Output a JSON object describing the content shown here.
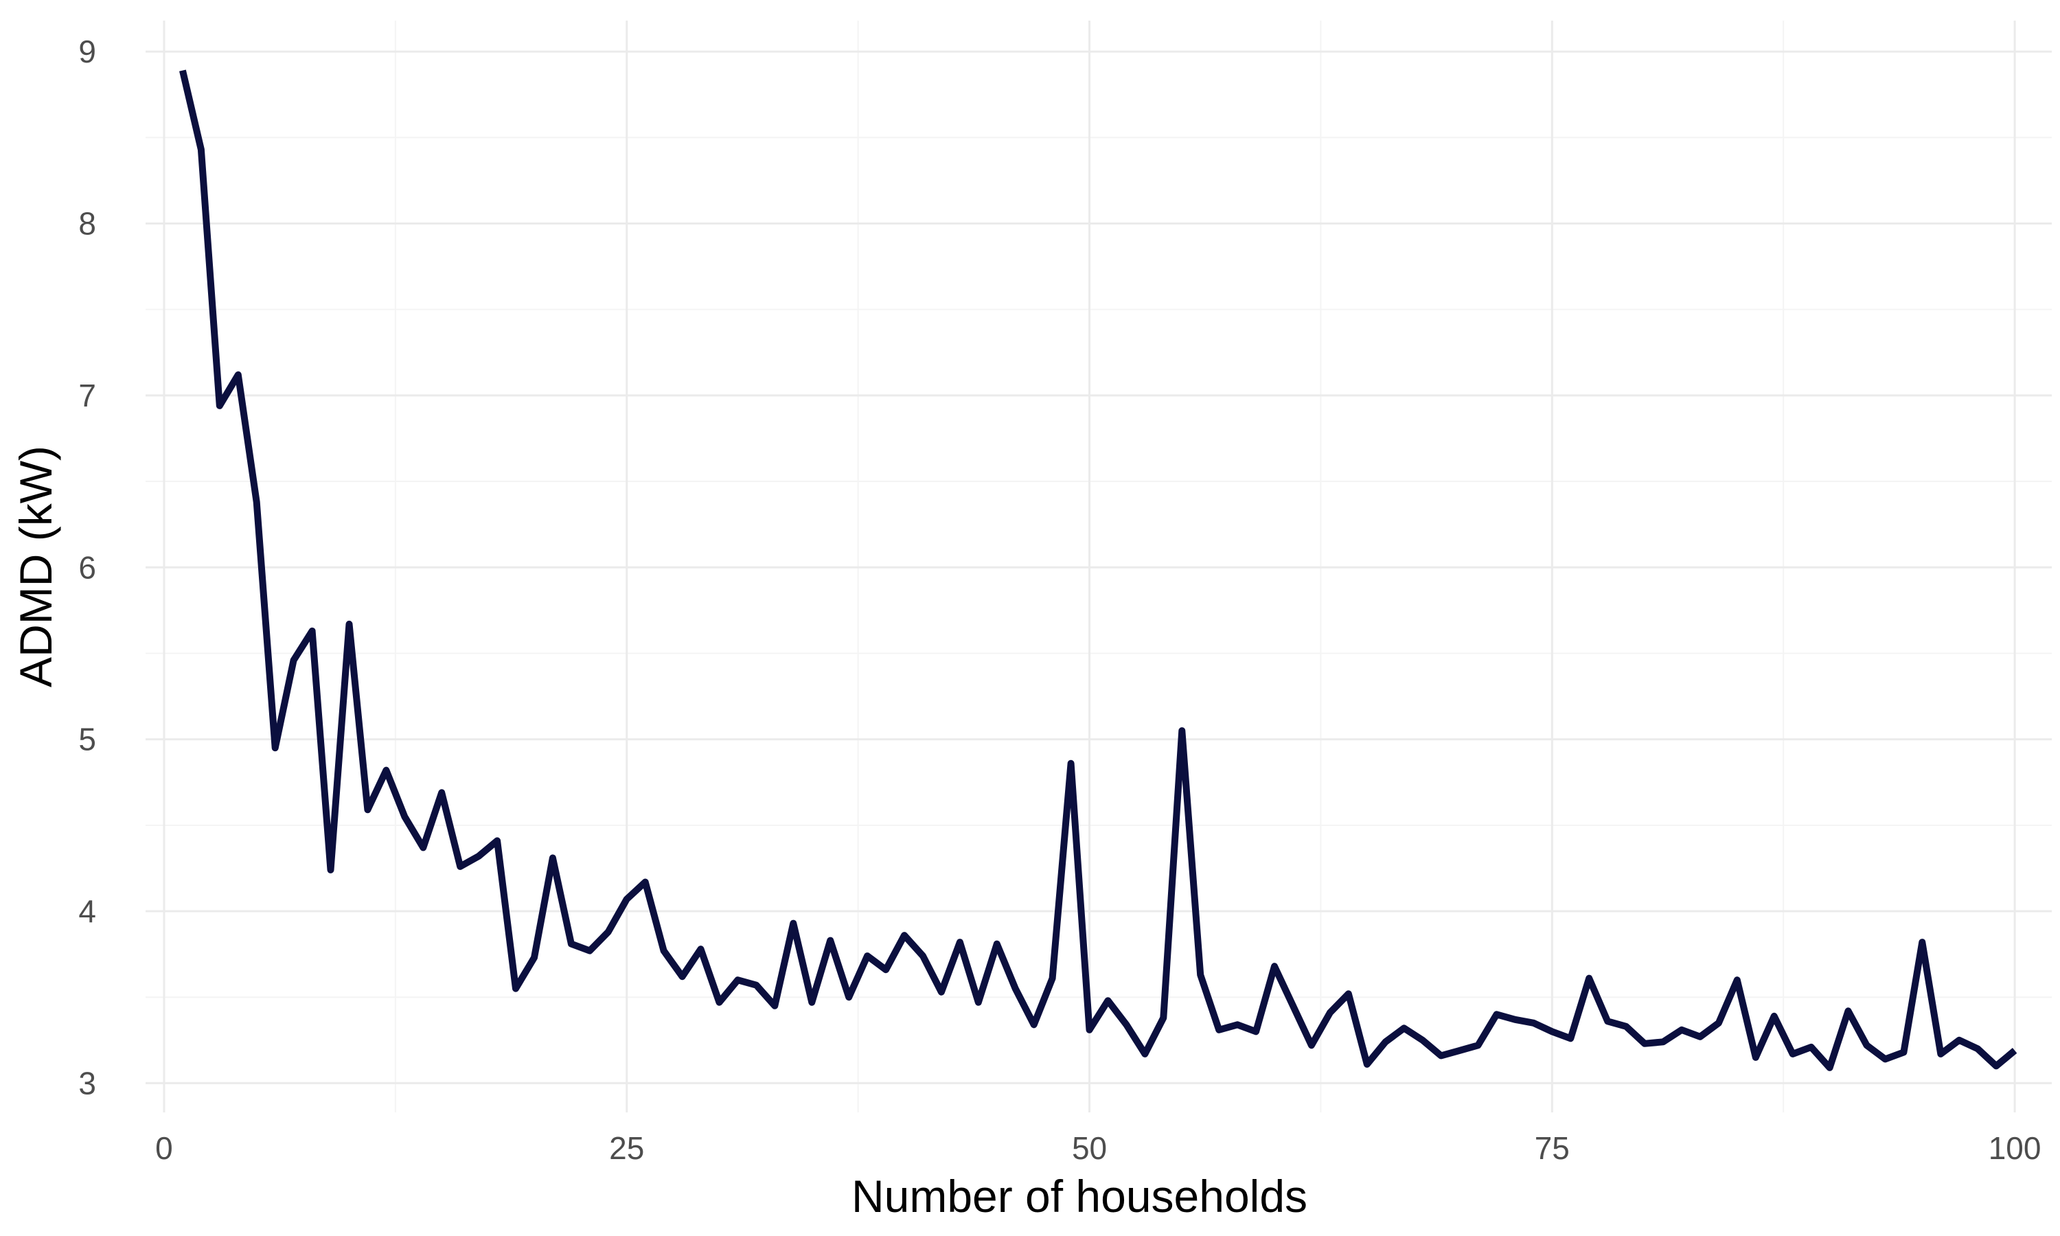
{
  "chart_data": {
    "type": "line",
    "xlabel": "Number of households",
    "ylabel": "ADMD (kW)",
    "xlim": [
      -1,
      102
    ],
    "ylim": [
      2.83,
      9.18
    ],
    "x_ticks": [
      0,
      25,
      50,
      75,
      100
    ],
    "x_tick_labels": [
      "0",
      "25",
      "50",
      "75",
      "100"
    ],
    "y_ticks": [
      3,
      4,
      5,
      6,
      7,
      8,
      9
    ],
    "y_tick_labels": [
      "3",
      "4",
      "5",
      "6",
      "7",
      "8",
      "9"
    ],
    "grid": true,
    "legend": "none",
    "colors": {
      "line": "#0b0f3e",
      "grid": "#ebebeb",
      "text": "#4d4d4d"
    },
    "series": [
      {
        "x": [
          1,
          2,
          3,
          4,
          5,
          6,
          7,
          8,
          9,
          10,
          11,
          12,
          13,
          14,
          15,
          16,
          17,
          18,
          19,
          20,
          21,
          22,
          23,
          24,
          25,
          26,
          27,
          28,
          29,
          30,
          31,
          32,
          33,
          34,
          35,
          36,
          37,
          38,
          39,
          40,
          41,
          42,
          43,
          44,
          45,
          46,
          47,
          48,
          49,
          50,
          51,
          52,
          53,
          54,
          55,
          56,
          57,
          58,
          59,
          60,
          61,
          62,
          63,
          64,
          65,
          66,
          67,
          68,
          69,
          70,
          71,
          72,
          73,
          74,
          75,
          76,
          77,
          78,
          79,
          80,
          81,
          82,
          83,
          84,
          85,
          86,
          87,
          88,
          89,
          90,
          91,
          92,
          93,
          94,
          95,
          96,
          97,
          98,
          99,
          100
        ],
        "values": [
          8.89,
          8.43,
          6.94,
          7.12,
          6.38,
          4.95,
          5.46,
          5.63,
          4.24,
          5.67,
          4.59,
          4.82,
          4.55,
          4.37,
          4.69,
          4.26,
          4.32,
          4.41,
          3.55,
          3.73,
          4.31,
          3.81,
          3.77,
          3.88,
          4.07,
          4.17,
          3.77,
          3.62,
          3.78,
          3.47,
          3.6,
          3.57,
          3.45,
          3.93,
          3.47,
          3.83,
          3.5,
          3.74,
          3.66,
          3.86,
          3.74,
          3.53,
          3.82,
          3.47,
          3.81,
          3.55,
          3.34,
          3.61,
          4.86,
          3.31,
          3.48,
          3.34,
          3.17,
          3.38,
          5.05,
          3.63,
          3.31,
          3.34,
          3.3,
          3.68,
          3.45,
          3.22,
          3.41,
          3.52,
          3.11,
          3.24,
          3.32,
          3.25,
          3.16,
          3.19,
          3.22,
          3.4,
          3.37,
          3.35,
          3.3,
          3.26,
          3.61,
          3.36,
          3.33,
          3.23,
          3.24,
          3.31,
          3.27,
          3.35,
          3.6,
          3.15,
          3.39,
          3.17,
          3.21,
          3.09,
          3.42,
          3.22,
          3.14,
          3.18,
          3.82,
          3.17,
          3.25,
          3.2,
          3.1,
          3.19
        ]
      }
    ]
  }
}
